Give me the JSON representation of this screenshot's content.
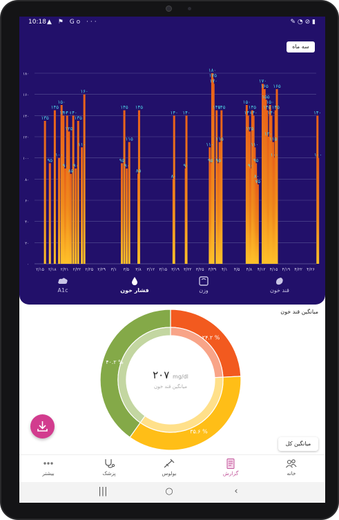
{
  "status_bar": {
    "time": "10:18",
    "notif_icons": "▲ ⚑ Go ···",
    "sys_icons": "✎ ◔ ⊘ ▮"
  },
  "chart_panel": {
    "range_button": "سه ماه",
    "tabs": [
      {
        "label": "قند خون",
        "icon": "glucose-drop-icon",
        "active": false
      },
      {
        "label": "وزن",
        "icon": "scale-icon",
        "active": false
      },
      {
        "label": "فشار خون",
        "icon": "blood-drop-icon",
        "active": true
      },
      {
        "label": "A1c",
        "icon": "cloud-icon",
        "active": false
      }
    ]
  },
  "chart_data": {
    "type": "bar",
    "ylim": [
      0,
      180
    ],
    "y_ticks": [
      "۰",
      "۲۰",
      "۴۰",
      "۶۰",
      "۸۰",
      "۱۰۰",
      "۱۲۰",
      "۱۴۰",
      "۱۶۰",
      "۱۸۰"
    ],
    "x_ticks": [
      "۲/۱۵",
      "۲/۱۸",
      "۲/۲۱",
      "۲/۲۲",
      "۲/۲۵",
      "۲/۲۹",
      "۳/۱",
      "۳/۵",
      "۳/۸",
      "۳/۱۲",
      "۳/۱۵",
      "۳/۱۹",
      "۳/۲۲",
      "۳/۲۵",
      "۳/۲۹",
      "۴/۱",
      "۴/۵",
      "۴/۸",
      "۴/۱۲",
      "۴/۱۵",
      "۴/۱۹",
      "۴/۲۲",
      "۴/۲۶"
    ],
    "bars": [
      {
        "x": 0.4,
        "value": 135,
        "label": "۱۳۵"
      },
      {
        "x": 0.8,
        "value": 95,
        "label": "۹۵"
      },
      {
        "x": 1.2,
        "value": 145,
        "label": "۱۴۵"
      },
      {
        "x": 1.55,
        "value": 100,
        "label": "۱۰۰"
      },
      {
        "x": 1.75,
        "value": 150,
        "label": "۱۵۰"
      },
      {
        "x": 1.9,
        "value": 140,
        "label": "۱۴۰"
      },
      {
        "x": 2.05,
        "value": 90,
        "label": "۹۰"
      },
      {
        "x": 2.2,
        "value": 140,
        "label": "۱۴۰"
      },
      {
        "x": 2.35,
        "value": 125,
        "label": "۱۲۵"
      },
      {
        "x": 2.5,
        "value": 85,
        "label": "۸۵"
      },
      {
        "x": 2.7,
        "value": 140,
        "label": "۱۴۰"
      },
      {
        "x": 2.9,
        "value": 90,
        "label": "۹۰"
      },
      {
        "x": 3.1,
        "value": 135,
        "label": "۱۳۵"
      },
      {
        "x": 3.4,
        "value": 110,
        "label": "۱۱۰"
      },
      {
        "x": 3.6,
        "value": 160,
        "label": "۱۶۰"
      },
      {
        "x": 6.65,
        "value": 95,
        "label": "۹۵"
      },
      {
        "x": 6.85,
        "value": 145,
        "label": "۱۴۵"
      },
      {
        "x": 7.05,
        "value": 90,
        "label": "۹۰"
      },
      {
        "x": 7.25,
        "value": 115,
        "label": "۱۱۵"
      },
      {
        "x": 8.0,
        "value": 85,
        "label": "۸۵"
      },
      {
        "x": 8.05,
        "value": 145,
        "label": "۱۴۵"
      },
      {
        "x": 10.85,
        "value": 80,
        "label": "۸۰"
      },
      {
        "x": 10.9,
        "value": 140,
        "label": "۱۴۰"
      },
      {
        "x": 11.85,
        "value": 90,
        "label": "۹۰"
      },
      {
        "x": 11.9,
        "value": 140,
        "label": "۱۴۰"
      },
      {
        "x": 13.8,
        "value": 110,
        "label": "۱۱۰"
      },
      {
        "x": 13.85,
        "value": 95,
        "label": "۹۵"
      },
      {
        "x": 14.0,
        "value": 180,
        "label": "۱۸۰"
      },
      {
        "x": 14.05,
        "value": 175,
        "label": "۱۷۵"
      },
      {
        "x": 14.1,
        "value": 170,
        "label": "۱۷۰"
      },
      {
        "x": 14.35,
        "value": 145,
        "label": "۱۴۵"
      },
      {
        "x": 14.5,
        "value": 95,
        "label": "۹۵"
      },
      {
        "x": 14.6,
        "value": 115,
        "label": "۱۱۵"
      },
      {
        "x": 14.75,
        "value": 145,
        "label": "۱۴۵"
      },
      {
        "x": 16.8,
        "value": 150,
        "label": "۱۵۰"
      },
      {
        "x": 16.9,
        "value": 140,
        "label": "۱۴۰"
      },
      {
        "x": 17.05,
        "value": 125,
        "label": "۱۲۵"
      },
      {
        "x": 17.1,
        "value": 90,
        "label": "۹۰"
      },
      {
        "x": 17.25,
        "value": 145,
        "label": "۱۴۵"
      },
      {
        "x": 17.35,
        "value": 140,
        "label": "۱۴۰"
      },
      {
        "x": 17.45,
        "value": 110,
        "label": "۱۱۰"
      },
      {
        "x": 17.55,
        "value": 95,
        "label": "۹۵"
      },
      {
        "x": 17.6,
        "value": 80,
        "label": "۸۰"
      },
      {
        "x": 17.7,
        "value": 75,
        "label": "۷۵"
      },
      {
        "x": 18.1,
        "value": 170,
        "label": "۱۷۰"
      },
      {
        "x": 18.25,
        "value": 165,
        "label": "۱۶۵"
      },
      {
        "x": 18.35,
        "value": 155,
        "label": "۱۵۵"
      },
      {
        "x": 18.45,
        "value": 145,
        "label": "۱۴۵"
      },
      {
        "x": 18.55,
        "value": 120,
        "label": "۱۲۰"
      },
      {
        "x": 18.7,
        "value": 150,
        "label": "۱۵۰"
      },
      {
        "x": 18.8,
        "value": 140,
        "label": "۱۴۰"
      },
      {
        "x": 18.95,
        "value": 115,
        "label": "۱۱۵"
      },
      {
        "x": 19.05,
        "value": 100,
        "label": "۱۰۰"
      },
      {
        "x": 19.15,
        "value": 145,
        "label": "۱۴۵"
      },
      {
        "x": 19.25,
        "value": 165,
        "label": "۱۶۵"
      },
      {
        "x": 22.55,
        "value": 140,
        "label": "۱۴۰"
      },
      {
        "x": 22.6,
        "value": 100,
        "label": "۱۰۰"
      }
    ]
  },
  "summary": {
    "title": "میانگین قند خون",
    "center_value": "۲۰۷",
    "center_unit": "mg/dl",
    "center_label": "میانگین قند خون",
    "slices": [
      {
        "label": "۲۴.۲ %",
        "value": 24.2,
        "color": "#f25a1f",
        "inner_color": "#f8a488"
      },
      {
        "label": "۳۵.۶ %",
        "value": 35.6,
        "color": "#ffbe17",
        "inner_color": "#ffe08a"
      },
      {
        "label": "۴۰.۲ %",
        "value": 40.2,
        "color": "#84a948",
        "inner_color": "#c3d6a1"
      }
    ],
    "average_button": "میانگین کل"
  },
  "bottom_nav": [
    {
      "label": "خانه",
      "icon": "people-icon",
      "active": false
    },
    {
      "label": "گزارش",
      "icon": "report-icon",
      "active": true
    },
    {
      "label": "بولوس",
      "icon": "syringe-icon",
      "active": false
    },
    {
      "label": "پزشک",
      "icon": "stethoscope-icon",
      "active": false
    },
    {
      "label": "بیشتر",
      "icon": "more-icon",
      "active": false
    }
  ],
  "system_nav": {
    "recents": "|||",
    "home": "○",
    "back": "‹"
  }
}
